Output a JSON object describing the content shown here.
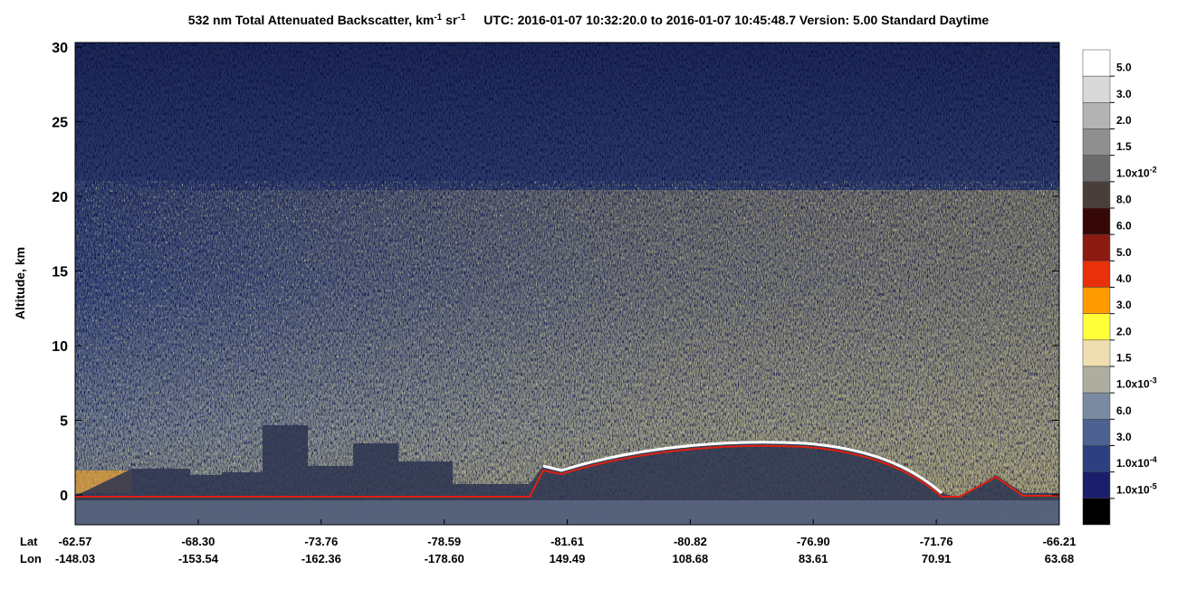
{
  "chart_data": {
    "type": "curtain",
    "title": [
      "532 nm Total Attenuated Backscatter, km",
      "-1",
      " sr",
      "-1",
      "UTC:  2016-01-07 10:32:20.0  to  2016-01-07 10:45:48.7    Version: 5.00  Standard  Daytime"
    ],
    "y_label": "Altitude, km",
    "ylim": [
      -2,
      30.3
    ],
    "yticks": [
      0,
      5,
      10,
      15,
      20,
      25,
      30
    ],
    "x_rows": [
      {
        "name": "Lat",
        "labels": [
          "-62.57",
          "-68.30",
          "-73.76",
          "-78.59",
          "-81.61",
          "-80.82",
          "-76.90",
          "-71.76",
          "-66.21"
        ]
      },
      {
        "name": "Lon",
        "labels": [
          "-148.03",
          "-153.54",
          "-162.36",
          "-178.60",
          "149.49",
          "108.68",
          "83.61",
          "70.91",
          "63.68"
        ]
      }
    ],
    "colorbar": {
      "colors": [
        "#ffffff",
        "#d9d9d9",
        "#b3b3b3",
        "#8f8f8f",
        "#6b6b6b",
        "#4a3e3b",
        "#360707",
        "#8b1a10",
        "#e8300a",
        "#ff9a00",
        "#ffff3a",
        "#efdfb0",
        "#aeaea0",
        "#7a8aa0",
        "#4d6290",
        "#2e3f80",
        "#1b1e6a",
        "#000000"
      ],
      "labels": [
        {
          "text": "5.0"
        },
        {
          "text": "3.0"
        },
        {
          "text": "2.0"
        },
        {
          "text": "1.5"
        },
        {
          "text": "1.0x10",
          "sup": "-2"
        },
        {
          "text": "8.0"
        },
        {
          "text": "6.0"
        },
        {
          "text": "5.0"
        },
        {
          "text": "4.0"
        },
        {
          "text": "3.0"
        },
        {
          "text": "2.0"
        },
        {
          "text": "1.5"
        },
        {
          "text": "1.0x10",
          "sup": "-3"
        },
        {
          "text": "6.0"
        },
        {
          "text": "3.0"
        },
        {
          "text": "1.0x10",
          "sup": "-4"
        },
        {
          "text": "1.0x10",
          "sup": "-5"
        }
      ]
    }
  }
}
